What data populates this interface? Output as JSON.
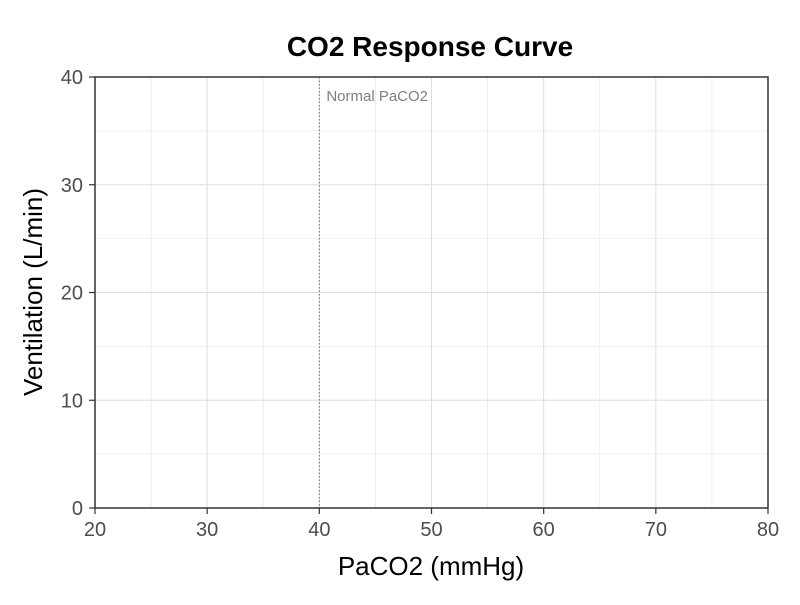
{
  "chart_data": {
    "type": "line",
    "title": "CO2 Response Curve",
    "xlabel": "PaCO2 (mmHg)",
    "ylabel": "Ventilation (L/min)",
    "xlim": [
      20,
      80
    ],
    "ylim": [
      0,
      40
    ],
    "x_ticks": [
      20,
      30,
      40,
      50,
      60,
      70,
      80
    ],
    "y_ticks": [
      0,
      10,
      20,
      30,
      40
    ],
    "x_minor_ticks": [
      25,
      35,
      45,
      55,
      65,
      75
    ],
    "y_minor_ticks": [
      5,
      15,
      25,
      35
    ],
    "grid": true,
    "series": [],
    "annotations": [
      {
        "type": "vline",
        "x": 40,
        "label": "Normal PaCO2",
        "color": "#4a78b0",
        "style": "dotted"
      }
    ]
  }
}
